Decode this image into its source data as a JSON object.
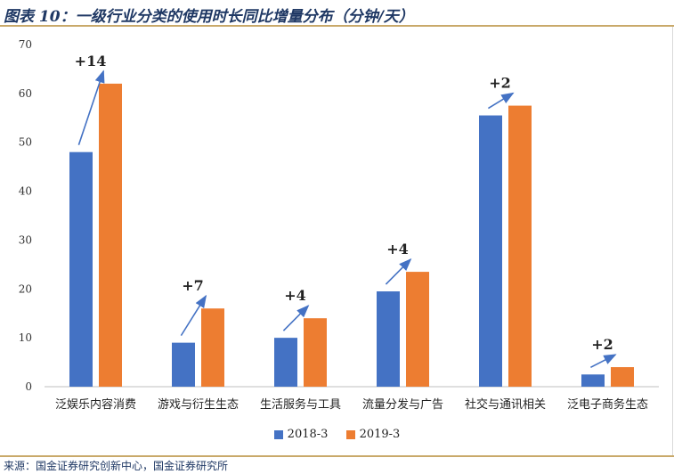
{
  "header": {
    "title": "图表 10：一级行业分类的使用时长同比增量分布（分钟/天）"
  },
  "colors": {
    "series_2018": "#4472c4",
    "series_2019": "#ed7d31",
    "arrow": "#4472c4",
    "accent": "#c9a96a",
    "title": "#1f3864"
  },
  "chart_data": {
    "type": "bar",
    "categories": [
      "泛娱乐内容消费",
      "游戏与衍生生态",
      "生活服务与工具",
      "流量分发与广告",
      "社交与通讯相关",
      "泛电子商务生态"
    ],
    "series": [
      {
        "name": "2018-3",
        "values": [
          48,
          9,
          10,
          19.5,
          55.5,
          2.5
        ]
      },
      {
        "name": "2019-3",
        "values": [
          62,
          16,
          14,
          23.5,
          57.5,
          4
        ]
      }
    ],
    "annotations": [
      "+14",
      "+7",
      "+4",
      "+4",
      "+2",
      "+2"
    ],
    "ylim": [
      0,
      70
    ],
    "yticks": [
      "0",
      "10",
      "20",
      "30",
      "40",
      "50",
      "60",
      "70"
    ],
    "xlabel": "",
    "ylabel": "",
    "grid": false,
    "legend": "bottom"
  },
  "footer": {
    "source": "来源：国金证券研究创新中心，国金证券研究所"
  }
}
